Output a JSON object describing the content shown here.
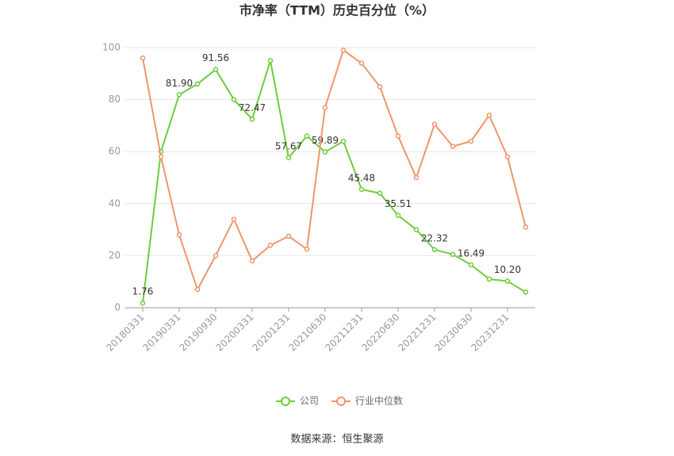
{
  "chart_data": {
    "type": "line",
    "title": "市净率（TTM）历史百分位（%）",
    "categories": [
      "20180331",
      null,
      "20190331",
      null,
      "20190930",
      null,
      "20200331",
      null,
      "20201231",
      null,
      "20210630",
      null,
      "20211231",
      null,
      "20220630",
      null,
      "20221231",
      null,
      "20230630",
      null,
      "20231231",
      null
    ],
    "series": [
      {
        "name": "公司",
        "color": "#6dcc3c",
        "values": [
          1.76,
          60,
          81.9,
          86,
          91.56,
          80,
          72.47,
          95,
          57.67,
          66,
          59.89,
          64,
          45.48,
          44,
          35.51,
          30,
          22.32,
          20.5,
          16.49,
          11,
          10.2,
          6
        ],
        "value_labels": [
          "1.76",
          null,
          "81.90",
          null,
          "91.56",
          null,
          "72.47",
          null,
          "57.67",
          null,
          "59.89",
          null,
          "45.48",
          null,
          "35.51",
          null,
          "22.32",
          null,
          "16.49",
          null,
          "10.20",
          null
        ]
      },
      {
        "name": "行业中位数",
        "color": "#f0956a",
        "values": [
          96,
          58,
          28,
          7,
          20,
          34,
          18,
          24,
          27.5,
          22.5,
          77,
          99,
          94,
          85,
          66,
          50,
          70.5,
          62,
          64,
          74,
          58,
          31
        ]
      }
    ],
    "ylim": [
      0,
      100
    ],
    "yticks": [
      0,
      20,
      40,
      60,
      80,
      100
    ],
    "grid": true,
    "source": "数据来源：恒生聚源"
  }
}
